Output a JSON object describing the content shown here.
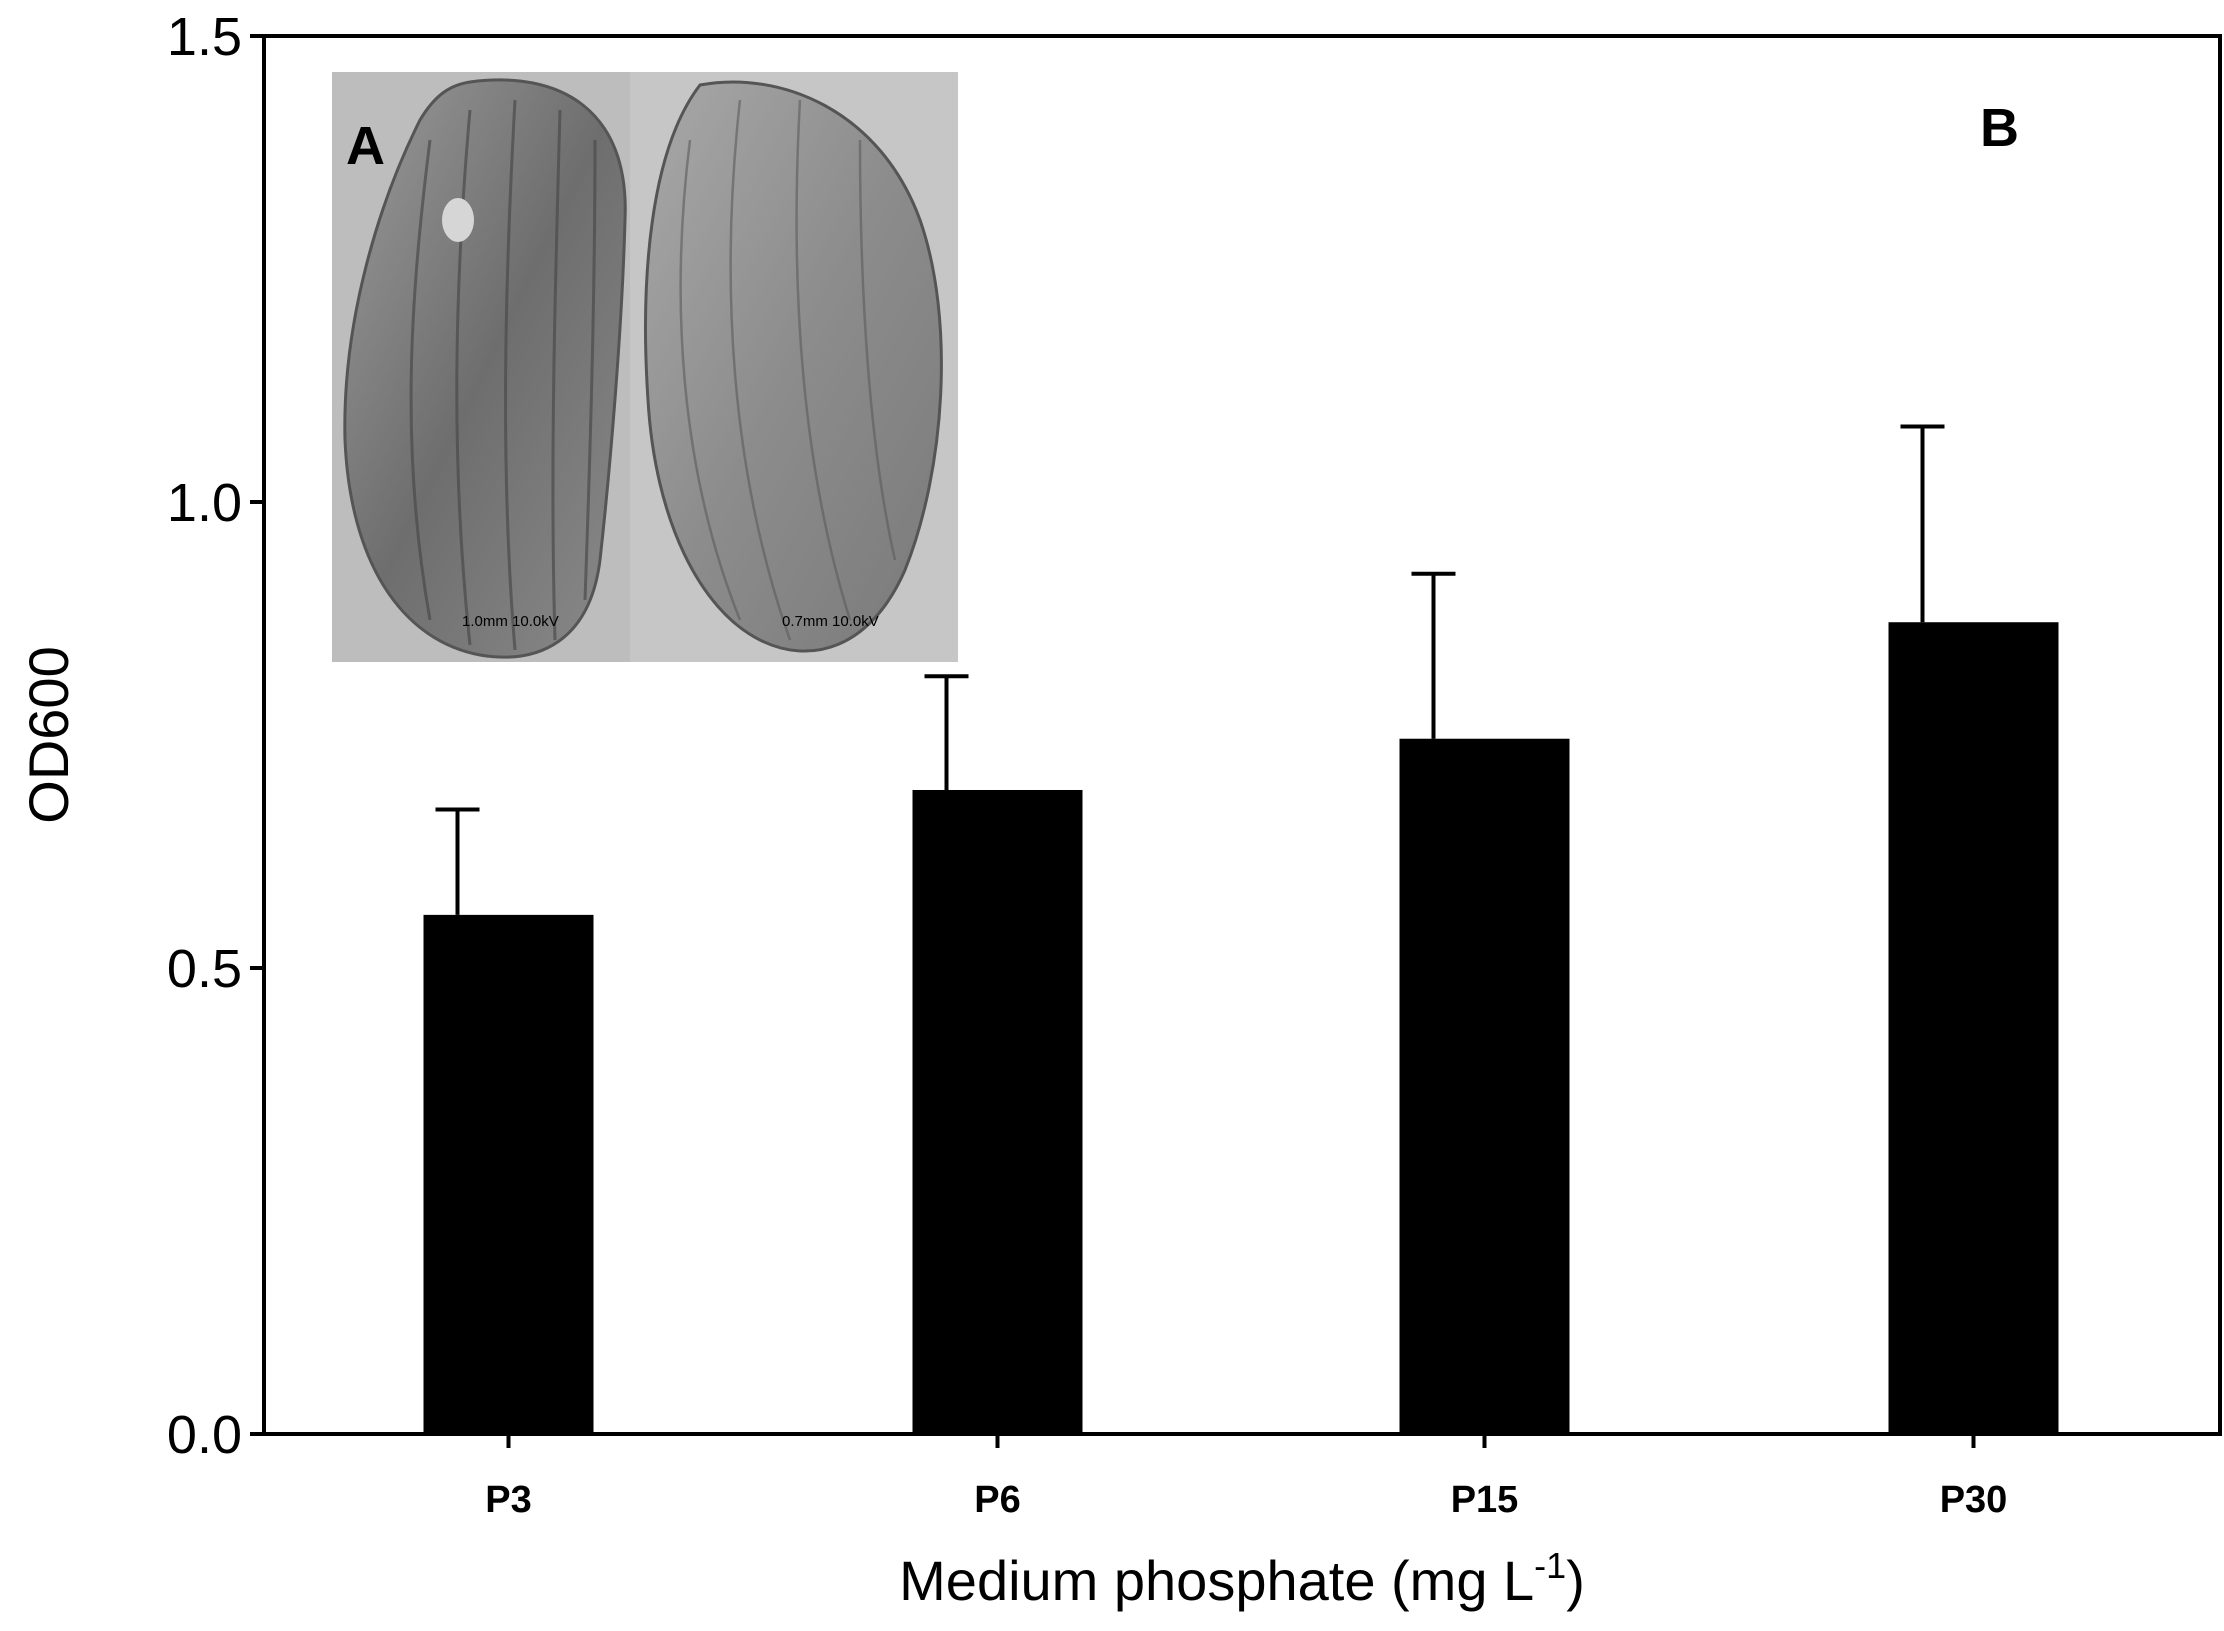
{
  "panel_labels": {
    "inset": "A",
    "chart": "B"
  },
  "inset": {
    "description_icon": "seed-micrograph-image",
    "scale_left": "1.0mm 10.0kV",
    "scale_right": "0.7mm 10.0kV"
  },
  "chart_data": {
    "type": "bar",
    "title": "",
    "categories": [
      "P3",
      "P6",
      "P15",
      "P30"
    ],
    "values": [
      0.557,
      0.691,
      0.746,
      0.871
    ],
    "errors": [
      0.113,
      0.122,
      0.177,
      0.21
    ],
    "xlabel": "Medium phosphate (mg L",
    "xlabel_superscript": "-1",
    "xlabel_suffix": ")",
    "ylabel": "OD600",
    "ylim": [
      0,
      1.5
    ],
    "yticks": [
      "0.0",
      "0.5",
      "1.0",
      "1.5"
    ],
    "bar_color": "#000000",
    "grid": false,
    "legend": "none"
  }
}
